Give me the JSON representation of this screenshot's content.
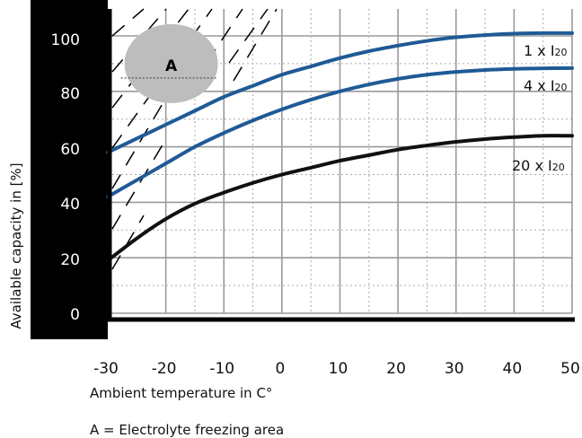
{
  "chart_data": {
    "type": "line",
    "xlabel": "Ambient temperature in C°",
    "ylabel": "Available capacity in [%]",
    "xlim": [
      -30,
      50
    ],
    "ylim": [
      0,
      105
    ],
    "x_ticks": [
      "-30",
      "-20",
      "-10",
      "0",
      "10",
      "20",
      "30",
      "40",
      "50"
    ],
    "y_ticks": [
      "0",
      "20",
      "40",
      "60",
      "80",
      "100"
    ],
    "grid": true,
    "series": [
      {
        "name": "1 x I20",
        "label_main": "1 x I",
        "label_sub": "20",
        "color": "#1f5a96",
        "x": [
          -30,
          -25,
          -20,
          -15,
          -10,
          -5,
          0,
          5,
          10,
          15,
          20,
          25,
          30,
          35,
          40,
          45,
          50
        ],
        "values": [
          58,
          63,
          68,
          73,
          78,
          82,
          86,
          89,
          92,
          94.5,
          96.5,
          98.2,
          99.5,
          100.3,
          100.8,
          101,
          101
        ]
      },
      {
        "name": "4 x I20",
        "label_main": "4 x I",
        "label_sub": "20",
        "color": "#1f5a96",
        "x": [
          -30,
          -25,
          -20,
          -15,
          -10,
          -5,
          0,
          5,
          10,
          15,
          20,
          25,
          30,
          35,
          40,
          45,
          50
        ],
        "values": [
          42,
          48,
          54,
          60,
          65,
          69.5,
          73.5,
          77,
          80,
          82.5,
          84.5,
          86,
          87,
          87.7,
          88.1,
          88.3,
          88.4
        ]
      },
      {
        "name": "20 x I20",
        "label_main": "20 x I",
        "label_sub": "20",
        "color": "#111111",
        "x": [
          -30,
          -25,
          -20,
          -15,
          -10,
          -5,
          0,
          5,
          10,
          15,
          20,
          25,
          30,
          35,
          40,
          45,
          50
        ],
        "values": [
          19,
          27,
          34,
          39.5,
          43.5,
          47,
          50,
          52.5,
          55,
          57,
          59,
          60.5,
          61.8,
          62.8,
          63.5,
          64,
          64
        ]
      }
    ],
    "annotations": [
      {
        "label": "A",
        "x": -20,
        "y": 90,
        "color": "#bdbdbd"
      }
    ],
    "note": "A = Electrolyte freezing area"
  }
}
